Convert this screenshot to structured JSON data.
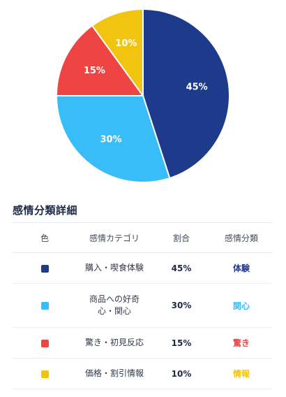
{
  "chart_data": {
    "type": "pie",
    "slices": [
      {
        "category": "購入・喫食体験",
        "value": 45,
        "label": "45%",
        "color": "#1e3a8a"
      },
      {
        "category": "商品への好奇心・関心",
        "value": 30,
        "label": "30%",
        "color": "#38bdf8"
      },
      {
        "category": "驚き・初見反応",
        "value": 15,
        "label": "15%",
        "color": "#ef4444"
      },
      {
        "category": "価格・割引情報",
        "value": 10,
        "label": "10%",
        "color": "#f1c40f"
      }
    ]
  },
  "detail": {
    "title": "感情分類詳細",
    "headers": {
      "color": "色",
      "category": "感情カテゴリ",
      "ratio": "割合",
      "classification": "感情分類"
    },
    "rows": [
      {
        "color": "#1e3a8a",
        "category": "購入・喫食体験",
        "ratio": "45%",
        "classification": "体験",
        "class_color": "#1e3a8a"
      },
      {
        "color": "#38bdf8",
        "category": "商品への好奇心・関心",
        "ratio": "30%",
        "classification": "関心",
        "class_color": "#38bdf8"
      },
      {
        "color": "#ef4444",
        "category": "驚き・初見反応",
        "ratio": "15%",
        "classification": "驚き",
        "class_color": "#ef4444"
      },
      {
        "color": "#f1c40f",
        "category": "価格・割引情報",
        "ratio": "10%",
        "classification": "情報",
        "class_color": "#f1c40f"
      }
    ]
  }
}
